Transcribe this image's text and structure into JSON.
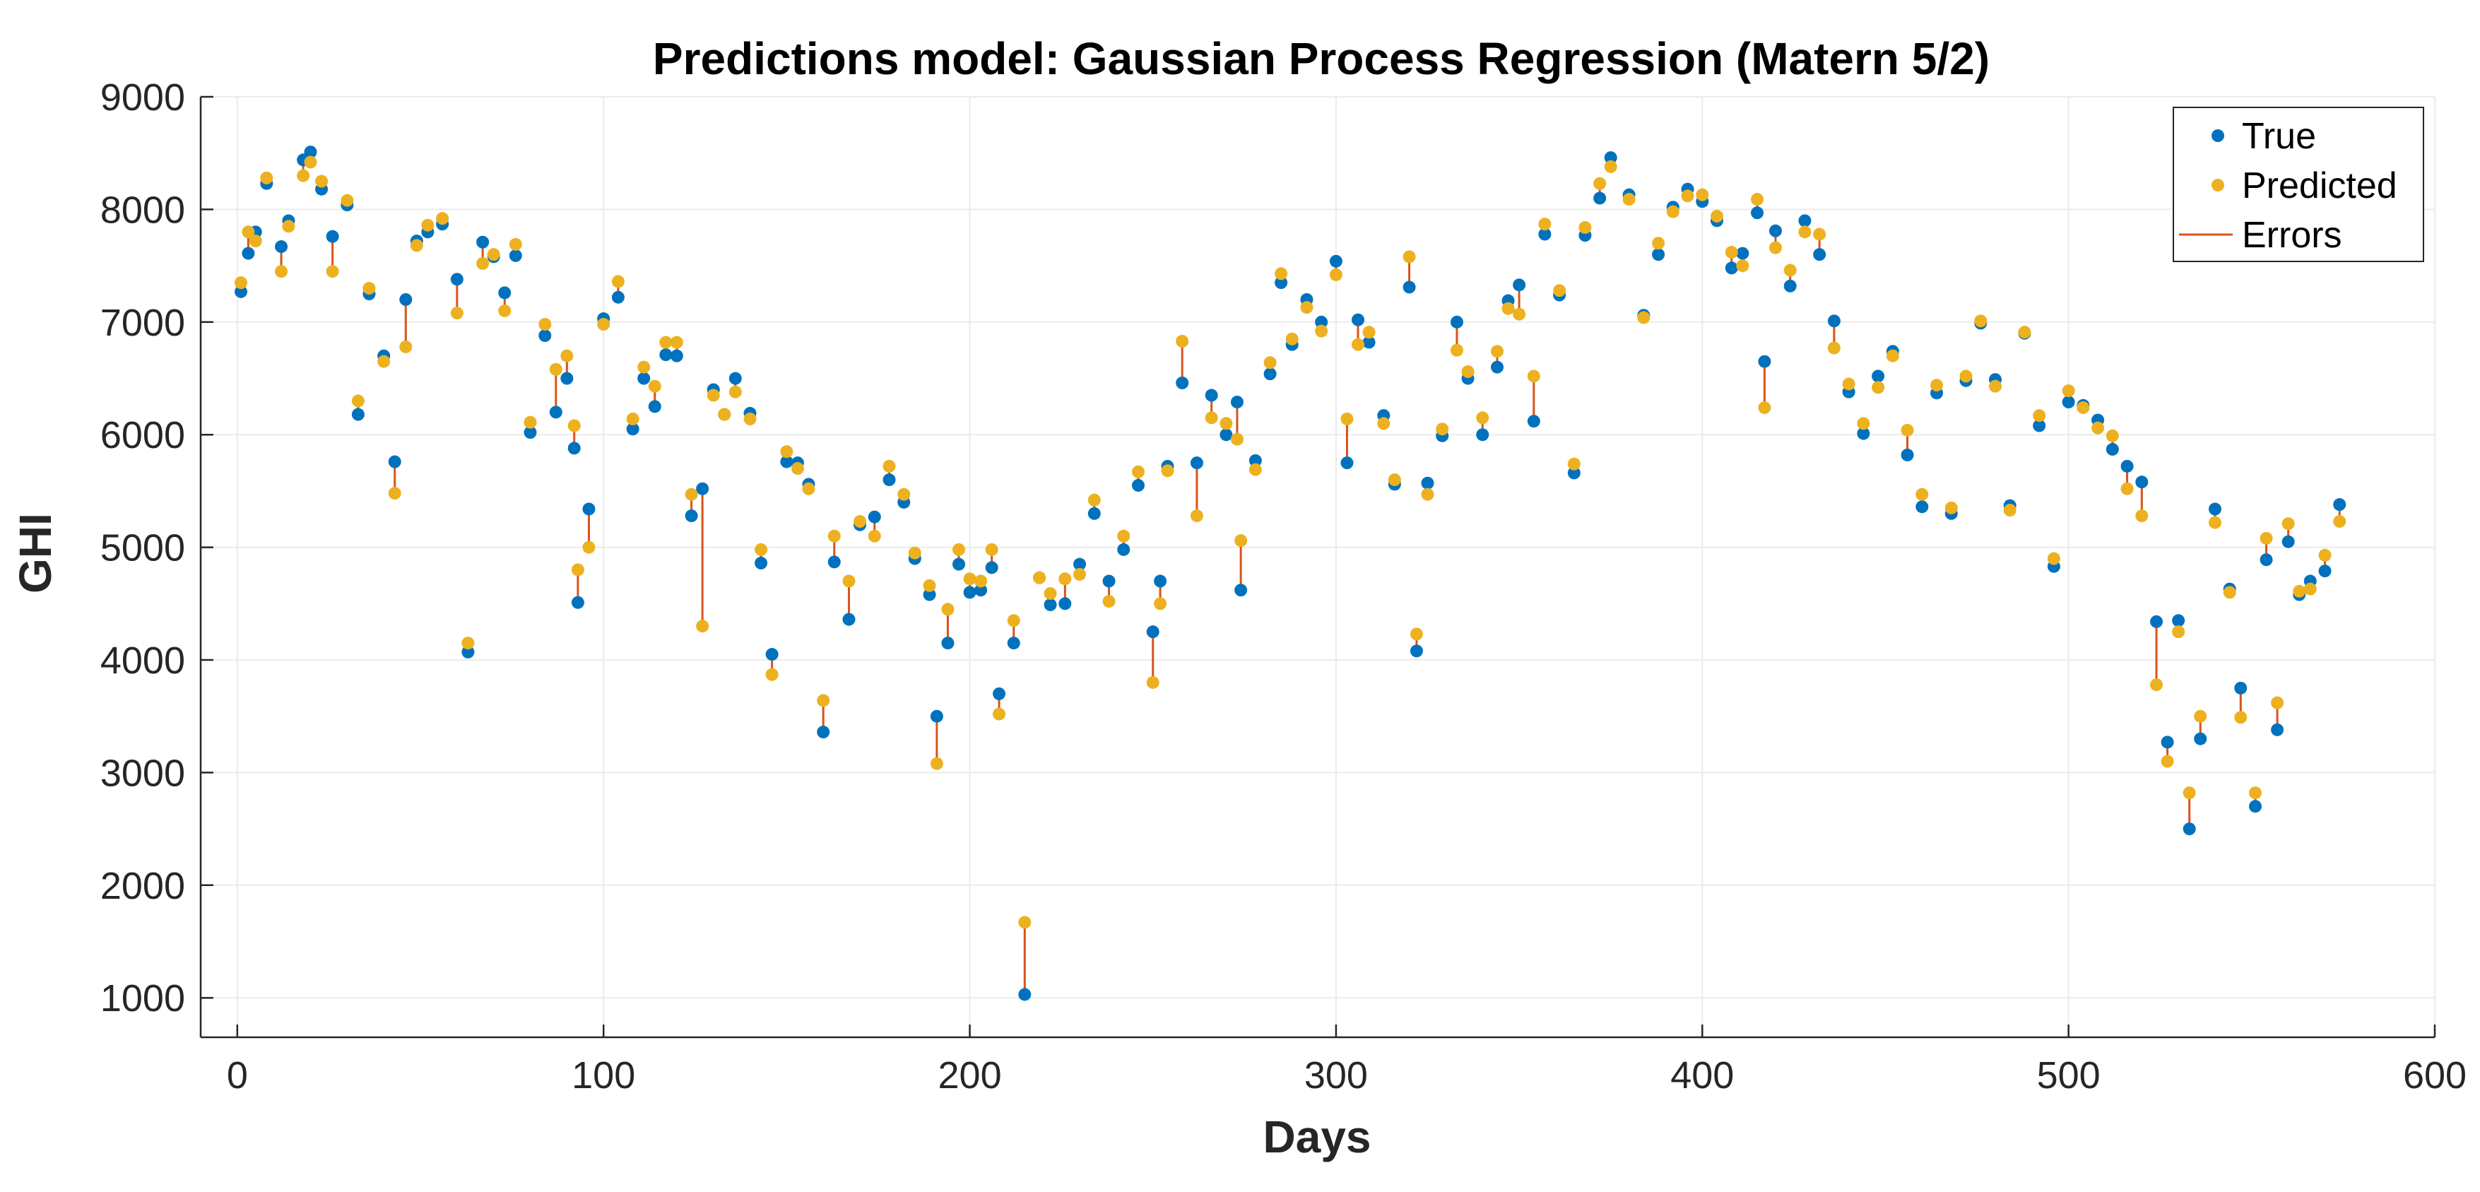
{
  "chart_data": {
    "type": "scatter",
    "title": "Predictions model: Gaussian Process Regression (Matern 5/2)",
    "xlabel": "Days",
    "ylabel": "GHI",
    "xlim": [
      -10,
      600
    ],
    "ylim": [
      650,
      9000
    ],
    "xticks": [
      0,
      100,
      200,
      300,
      400,
      500,
      600
    ],
    "yticks": [
      1000,
      2000,
      3000,
      4000,
      5000,
      6000,
      7000,
      8000,
      9000
    ],
    "grid": true,
    "legend_position": "top-right",
    "legend": [
      "True",
      "Predicted",
      "Errors"
    ],
    "colors": {
      "true": "#0072BD",
      "predicted": "#EDB120",
      "errors": "#D95319"
    },
    "series": [
      {
        "name": "True",
        "x": [
          1,
          3,
          5,
          8,
          12,
          14,
          18,
          20,
          23,
          26,
          30,
          33,
          36,
          40,
          43,
          46,
          49,
          52,
          56,
          60,
          63,
          67,
          70,
          73,
          76,
          80,
          84,
          87,
          90,
          92,
          93,
          96,
          100,
          104,
          108,
          111,
          114,
          117,
          120,
          124,
          127,
          130,
          133,
          136,
          140,
          143,
          146,
          150,
          153,
          156,
          160,
          163,
          167,
          170,
          174,
          178,
          182,
          185,
          189,
          191,
          194,
          197,
          200,
          203,
          206,
          208,
          212,
          215,
          219,
          222,
          226,
          230,
          234,
          238,
          242,
          246,
          250,
          252,
          254,
          258,
          262,
          266,
          270,
          273,
          274,
          278,
          282,
          285,
          288,
          292,
          296,
          300,
          303,
          306,
          309,
          313,
          316,
          320,
          322,
          325,
          329,
          333,
          336,
          340,
          344,
          347,
          350,
          354,
          357,
          361,
          365,
          368,
          372,
          375,
          380,
          384,
          388,
          392,
          396,
          400,
          404,
          408,
          411,
          415,
          417,
          420,
          424,
          428,
          432,
          436,
          440,
          444,
          448,
          452,
          456,
          460,
          464,
          468,
          472,
          476,
          480,
          484,
          488,
          492,
          496,
          500,
          504,
          508,
          512,
          516,
          520,
          524,
          527,
          530,
          533,
          536,
          540,
          544,
          547,
          551,
          554,
          557,
          560,
          563,
          566,
          570,
          574
        ],
        "values": [
          7270,
          7610,
          7800,
          8230,
          7670,
          7900,
          8440,
          8510,
          8180,
          7760,
          8040,
          6180,
          7250,
          6700,
          5760,
          7200,
          7720,
          7800,
          7870,
          7380,
          4070,
          7710,
          7580,
          7260,
          7590,
          6020,
          6880,
          6200,
          6500,
          5880,
          4510,
          5340,
          7030,
          7220,
          6050,
          6500,
          6250,
          6710,
          6700,
          5280,
          5520,
          6400,
          6180,
          6500,
          6190,
          4860,
          4050,
          5760,
          5750,
          5560,
          3360,
          4870,
          4360,
          5200,
          5270,
          5600,
          5400,
          4900,
          4580,
          3500,
          4150,
          4850,
          4600,
          4620,
          4820,
          3700,
          4150,
          1030,
          4730,
          4490,
          4500,
          4850,
          5300,
          4700,
          4980,
          5550,
          4250,
          4700,
          5720,
          6460,
          5750,
          6350,
          6000,
          6290,
          4620,
          5770,
          6540,
          7350,
          6800,
          7200,
          7000,
          7540,
          5750,
          7020,
          6820,
          6170,
          5560,
          7310,
          4080,
          5570,
          5990,
          7000,
          6500,
          6000,
          6600,
          7190,
          7330,
          6120,
          7780,
          7240,
          5660,
          7770,
          8100,
          8460,
          8130,
          7060,
          7600,
          8020,
          8180,
          8070,
          7900,
          7480,
          7610,
          7970,
          6650,
          7810,
          7320,
          7900,
          7600,
          7010,
          6380,
          6010,
          6520,
          6740,
          5820,
          5360,
          6370,
          5300,
          6480,
          6990,
          6490,
          5370,
          6900,
          6080,
          4830,
          6290,
          6260,
          6130,
          5870,
          5720,
          5580,
          4340,
          3270,
          4350,
          2500,
          3300,
          5340,
          4630,
          3750,
          2700,
          4890,
          3380,
          5050,
          4580,
          4700,
          4790,
          5380
        ]
      },
      {
        "name": "Predicted",
        "x": [
          1,
          3,
          5,
          8,
          12,
          14,
          18,
          20,
          23,
          26,
          30,
          33,
          36,
          40,
          43,
          46,
          49,
          52,
          56,
          60,
          63,
          67,
          70,
          73,
          76,
          80,
          84,
          87,
          90,
          92,
          93,
          96,
          100,
          104,
          108,
          111,
          114,
          117,
          120,
          124,
          127,
          130,
          133,
          136,
          140,
          143,
          146,
          150,
          153,
          156,
          160,
          163,
          167,
          170,
          174,
          178,
          182,
          185,
          189,
          191,
          194,
          197,
          200,
          203,
          206,
          208,
          212,
          215,
          219,
          222,
          226,
          230,
          234,
          238,
          242,
          246,
          250,
          252,
          254,
          258,
          262,
          266,
          270,
          273,
          274,
          278,
          282,
          285,
          288,
          292,
          296,
          300,
          303,
          306,
          309,
          313,
          316,
          320,
          322,
          325,
          329,
          333,
          336,
          340,
          344,
          347,
          350,
          354,
          357,
          361,
          365,
          368,
          372,
          375,
          380,
          384,
          388,
          392,
          396,
          400,
          404,
          408,
          411,
          415,
          417,
          420,
          424,
          428,
          432,
          436,
          440,
          444,
          448,
          452,
          456,
          460,
          464,
          468,
          472,
          476,
          480,
          484,
          488,
          492,
          496,
          500,
          504,
          508,
          512,
          516,
          520,
          524,
          527,
          530,
          533,
          536,
          540,
          544,
          547,
          551,
          554,
          557,
          560,
          563,
          566,
          570,
          574
        ],
        "values": [
          7350,
          7800,
          7720,
          8280,
          7450,
          7850,
          8300,
          8420,
          8250,
          7450,
          8080,
          6300,
          7300,
          6650,
          5480,
          6780,
          7680,
          7860,
          7920,
          7080,
          4150,
          7520,
          7600,
          7100,
          7690,
          6110,
          6980,
          6580,
          6700,
          6080,
          4800,
          5000,
          6980,
          7360,
          6140,
          6600,
          6430,
          6820,
          6820,
          5470,
          4300,
          6350,
          6180,
          6380,
          6140,
          4980,
          3870,
          5850,
          5700,
          5520,
          3640,
          5100,
          4700,
          5230,
          5100,
          5720,
          5470,
          4950,
          4660,
          3080,
          4450,
          4980,
          4720,
          4700,
          4980,
          3520,
          4350,
          1670,
          4730,
          4590,
          4720,
          4760,
          5420,
          4520,
          5100,
          5670,
          3800,
          4500,
          5680,
          6830,
          5280,
          6150,
          6100,
          5960,
          5060,
          5690,
          6640,
          7430,
          6850,
          7130,
          6920,
          7420,
          6140,
          6800,
          6910,
          6100,
          5600,
          7580,
          4230,
          5470,
          6050,
          6750,
          6560,
          6150,
          6740,
          7120,
          7070,
          6520,
          7870,
          7280,
          5740,
          7840,
          8230,
          8380,
          8090,
          7040,
          7700,
          7980,
          8120,
          8130,
          7940,
          7620,
          7500,
          8090,
          6240,
          7660,
          7460,
          7800,
          7780,
          6770,
          6450,
          6100,
          6420,
          6700,
          6040,
          5470,
          6440,
          5350,
          6520,
          7010,
          6430,
          5330,
          6910,
          6170,
          4900,
          6390,
          6240,
          6060,
          5990,
          5520,
          5280,
          3780,
          3100,
          4250,
          2820,
          3500,
          5220,
          4600,
          3490,
          2820,
          5080,
          3620,
          5210,
          4610,
          4630,
          4930,
          5230
        ]
      }
    ]
  }
}
